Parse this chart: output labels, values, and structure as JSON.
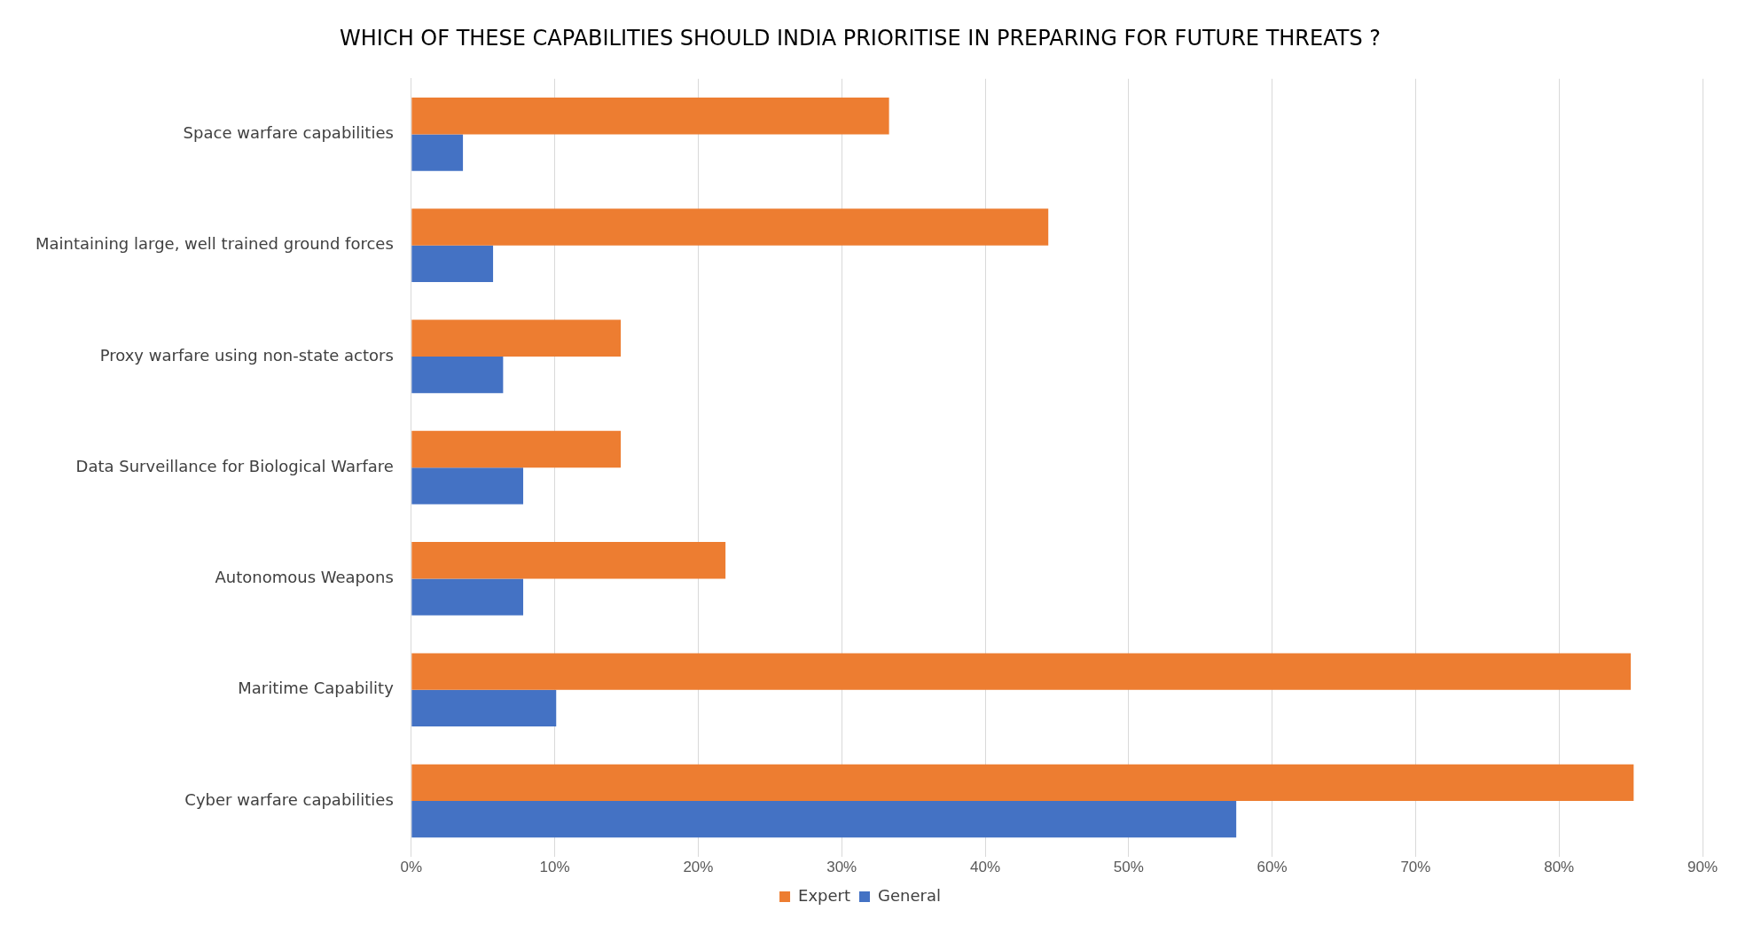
{
  "chart_data": {
    "type": "bar",
    "orientation": "horizontal",
    "title": "WHICH OF THESE CAPABILITIES SHOULD INDIA PRIORITISE IN PREPARING FOR FUTURE THREATS ?",
    "categories": [
      "Space warfare capabilities",
      "Maintaining large, well trained ground forces",
      "Proxy warfare using non-state actors",
      "Data Surveillance for Biological Warfare",
      "Autonomous Weapons",
      "Maritime Capability",
      "Cyber warfare capabilities"
    ],
    "series": [
      {
        "name": "Expert",
        "color": "#ed7d31",
        "values": [
          33.3,
          44.4,
          14.6,
          14.6,
          21.9,
          85.0,
          85.2
        ]
      },
      {
        "name": "General",
        "color": "#4472c4",
        "values": [
          3.6,
          5.7,
          6.4,
          7.8,
          7.8,
          10.1,
          57.5
        ]
      }
    ],
    "xlim": [
      0,
      90
    ],
    "xticks": [
      {
        "value": 0,
        "label": "0%"
      },
      {
        "value": 10,
        "label": "10%"
      },
      {
        "value": 20,
        "label": "20%"
      },
      {
        "value": 30,
        "label": "30%"
      },
      {
        "value": 40,
        "label": "40%"
      },
      {
        "value": 50,
        "label": "50%"
      },
      {
        "value": 60,
        "label": "60%"
      },
      {
        "value": 70,
        "label": "70%"
      },
      {
        "value": 80,
        "label": "80%"
      },
      {
        "value": 90,
        "label": "90%"
      }
    ],
    "grid": "x",
    "legend": "bottom"
  }
}
